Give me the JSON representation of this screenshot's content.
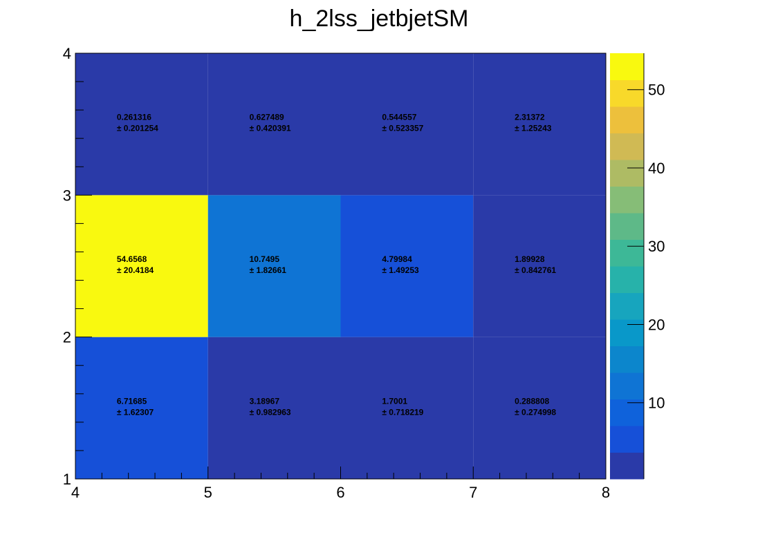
{
  "chart_data": {
    "type": "heatmap",
    "title": "h_2lss_jetbjetSM",
    "xlabel": "",
    "ylabel": "",
    "x_edges": [
      4,
      5,
      6,
      7,
      8
    ],
    "y_edges": [
      1,
      2,
      3,
      4
    ],
    "x_tick_labels": [
      "4",
      "5",
      "6",
      "7",
      "8"
    ],
    "y_tick_labels": [
      "1",
      "2",
      "3",
      "4"
    ],
    "xlim": [
      4,
      8
    ],
    "ylim": [
      1,
      4
    ],
    "grid": false,
    "values": [
      [
        6.71685,
        3.18967,
        1.7001,
        0.288808
      ],
      [
        54.6568,
        10.7495,
        4.79984,
        1.89928
      ],
      [
        0.261316,
        0.627489,
        0.544557,
        2.31372
      ]
    ],
    "errors": [
      [
        1.62307,
        0.982963,
        0.718219,
        0.274998
      ],
      [
        20.4184,
        1.82661,
        1.49253,
        0.842761
      ],
      [
        0.201254,
        0.420391,
        0.523357,
        1.25243
      ]
    ],
    "value_labels": [
      [
        "6.71685",
        "3.18967",
        "1.7001",
        "0.288808"
      ],
      [
        "54.6568",
        "10.7495",
        "4.79984",
        "1.89928"
      ],
      [
        "0.261316",
        "0.627489",
        "0.544557",
        "2.31372"
      ]
    ],
    "error_labels": [
      [
        "± 1.62307",
        "± 0.982963",
        "± 0.718219",
        "± 0.274998"
      ],
      [
        "± 20.4184",
        "± 1.82661",
        "± 1.49253",
        "± 0.842761"
      ],
      [
        "± 0.201254",
        "± 0.420391",
        "± 0.523357",
        "± 1.25243"
      ]
    ],
    "colorbar": {
      "min": 0.261316,
      "max": 54.6568,
      "tick_values": [
        10,
        20,
        30,
        40,
        50
      ],
      "tick_labels": [
        "10",
        "20",
        "30",
        "40",
        "50"
      ],
      "palette": [
        "#2a3aa8",
        "#1650d8",
        "#0f62db",
        "#0f74d4",
        "#0c86cc",
        "#0998c9",
        "#17a5be",
        "#27b2aa",
        "#3db897",
        "#5eb988",
        "#86bd77",
        "#aebb64",
        "#d0ba54",
        "#edc03c",
        "#f8d92a",
        "#f9f90f"
      ]
    }
  }
}
